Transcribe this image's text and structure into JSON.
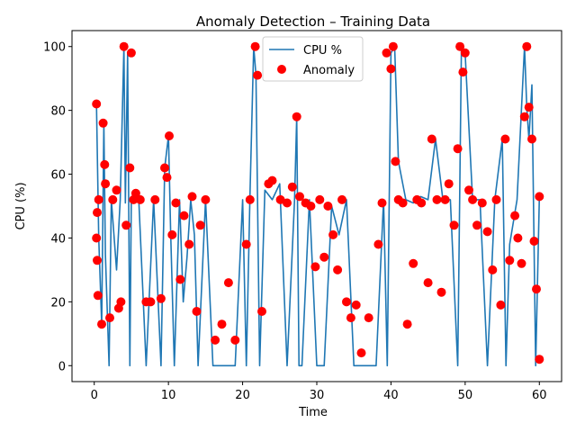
{
  "chart_data": {
    "type": "line",
    "title": "Anomaly Detection – Training Data",
    "xlabel": "Time",
    "ylabel": "CPU (%)",
    "xlim": [
      -3,
      63
    ],
    "ylim": [
      -5,
      105
    ],
    "xticks": [
      0,
      10,
      20,
      30,
      40,
      50,
      60
    ],
    "yticks": [
      0,
      20,
      40,
      60,
      80,
      100
    ],
    "grid": false,
    "legend": {
      "placement": "top-center",
      "entries": [
        {
          "label": "CPU %",
          "marker": "line"
        },
        {
          "label": "Anomaly",
          "marker": "dot"
        }
      ]
    },
    "series": [
      {
        "name": "CPU %",
        "kind": "line",
        "color": "#1f77b4",
        "x": [
          0.3,
          0.6,
          1.0,
          1.3,
          1.5,
          2.0,
          2.3,
          3.0,
          3.5,
          4.0,
          4.2,
          4.5,
          4.8,
          5.0,
          5.5,
          6.0,
          7.0,
          8.0,
          9.0,
          9.5,
          10.0,
          10.3,
          10.8,
          11.5,
          12.0,
          12.5,
          13.0,
          13.5,
          14.0,
          15.0,
          16.0,
          17.0,
          18.0,
          19.0,
          20.0,
          20.5,
          21.0,
          21.5,
          21.8,
          22.3,
          23.0,
          24.0,
          25.0,
          26.0,
          27.0,
          27.3,
          27.6,
          28.0,
          29.0,
          30.0,
          31.0,
          32.0,
          33.0,
          34.0,
          35.0,
          36.0,
          37.0,
          38.0,
          39.0,
          39.5,
          40.0,
          40.5,
          41.0,
          42.0,
          43.0,
          44.0,
          45.0,
          46.0,
          47.0,
          48.0,
          49.0,
          49.5,
          50.0,
          51.0,
          52.0,
          53.0,
          54.0,
          55.0,
          55.5,
          56.0,
          57.0,
          58.0,
          58.3,
          58.6,
          59.0,
          59.5,
          60.0
        ],
        "y": [
          82,
          40,
          13,
          76,
          35,
          0,
          52,
          30,
          52,
          100,
          51,
          98,
          0,
          52,
          51,
          52,
          0,
          52,
          0,
          62,
          72,
          42,
          0,
          52,
          20,
          34,
          52,
          41,
          0,
          52,
          0,
          0,
          0,
          0,
          52,
          0,
          54,
          100,
          91,
          0,
          55,
          52,
          57,
          0,
          52,
          78,
          0,
          0,
          52,
          0,
          0,
          50,
          41,
          52,
          0,
          0,
          0,
          0,
          52,
          0,
          98,
          100,
          64,
          52,
          51,
          53,
          52,
          71,
          52,
          52,
          0,
          100,
          98,
          52,
          52,
          0,
          52,
          71,
          0,
          38,
          52,
          100,
          81,
          71,
          88,
          0,
          53
        ]
      },
      {
        "name": "Anomaly",
        "kind": "scatter",
        "color": "#ff0000",
        "x": [
          0.3,
          0.3,
          0.4,
          0.4,
          0.5,
          0.6,
          1.0,
          1.2,
          1.4,
          1.5,
          2.1,
          2.5,
          3.0,
          3.3,
          3.6,
          4.0,
          4.3,
          4.8,
          5.0,
          5.3,
          5.6,
          6.2,
          7.0,
          7.6,
          8.2,
          9.0,
          9.5,
          9.8,
          10.1,
          10.5,
          11.0,
          11.6,
          12.1,
          12.8,
          13.2,
          13.8,
          14.3,
          15.0,
          16.3,
          17.2,
          18.1,
          19.0,
          20.5,
          21.0,
          21.7,
          22.0,
          22.6,
          23.5,
          24.0,
          25.1,
          26.0,
          26.7,
          27.3,
          27.7,
          28.5,
          29.2,
          29.8,
          30.4,
          31.0,
          31.5,
          32.2,
          32.8,
          33.4,
          34.0,
          34.6,
          35.3,
          36.0,
          37.0,
          38.3,
          38.8,
          39.4,
          40.0,
          40.3,
          40.6,
          41.0,
          41.6,
          42.2,
          43.0,
          43.5,
          44.1,
          45.0,
          45.5,
          46.2,
          46.8,
          47.3,
          47.8,
          48.5,
          49.0,
          49.3,
          49.7,
          50.0,
          50.5,
          51.0,
          51.6,
          52.3,
          53.0,
          53.7,
          54.2,
          54.8,
          55.4,
          56.0,
          56.7,
          57.1,
          57.6,
          58.0,
          58.3,
          58.6,
          59.0,
          59.3,
          59.6,
          60.0,
          60.0
        ],
        "y": [
          82,
          40,
          33,
          48,
          22,
          52,
          13,
          76,
          63,
          57,
          15,
          52,
          55,
          18,
          20,
          100,
          44,
          62,
          98,
          52,
          54,
          52,
          20,
          20,
          52,
          21,
          62,
          59,
          72,
          41,
          51,
          27,
          47,
          38,
          53,
          17,
          44,
          52,
          8,
          13,
          26,
          8,
          38,
          52,
          100,
          91,
          17,
          57,
          58,
          52,
          51,
          56,
          78,
          53,
          51,
          50,
          31,
          52,
          34,
          50,
          41,
          30,
          52,
          20,
          15,
          19,
          4,
          15,
          38,
          51,
          98,
          93,
          100,
          64,
          52,
          51,
          13,
          32,
          52,
          51,
          26,
          71,
          52,
          23,
          52,
          57,
          44,
          68,
          100,
          92,
          98,
          55,
          52,
          44,
          51,
          42,
          30,
          52,
          19,
          71,
          33,
          47,
          40,
          32,
          78,
          100,
          81,
          71,
          39,
          24,
          53,
          2
        ]
      }
    ]
  }
}
